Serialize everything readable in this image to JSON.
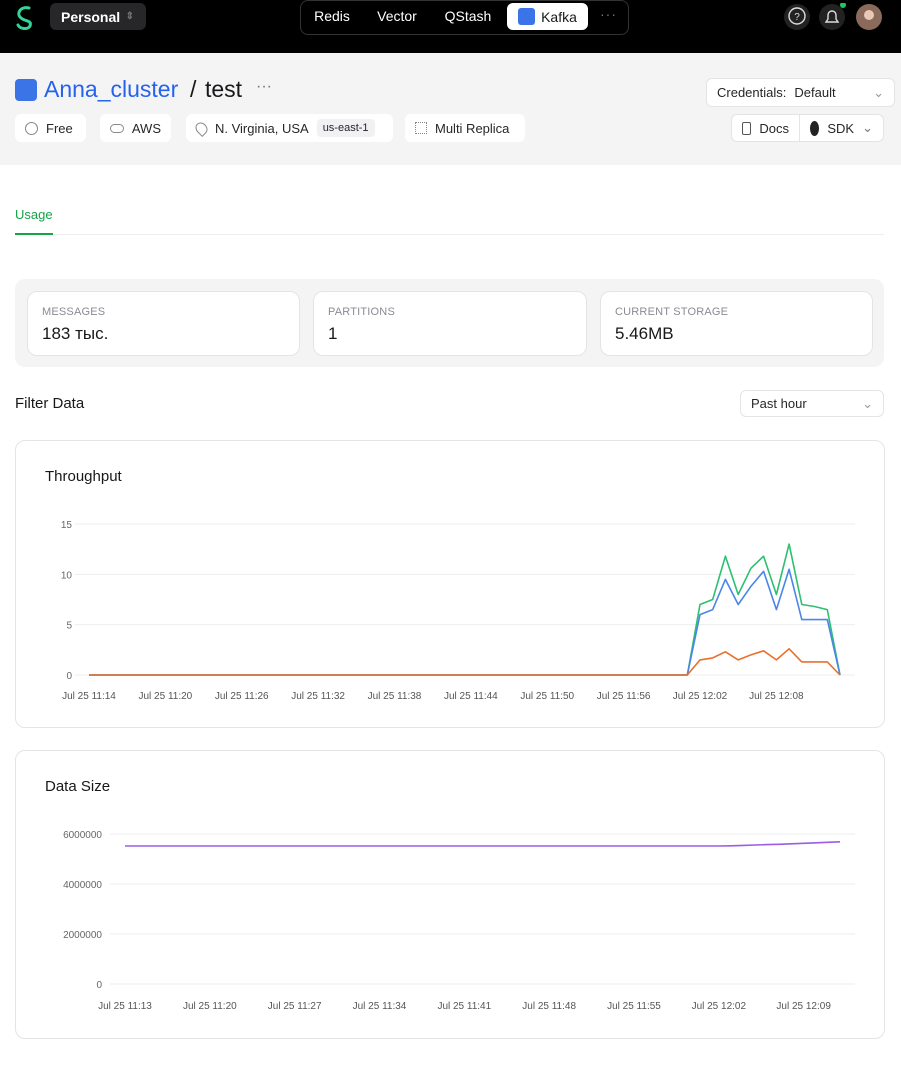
{
  "nav": {
    "workspace": "Personal",
    "products": [
      "Redis",
      "Vector",
      "QStash",
      "Kafka"
    ]
  },
  "header": {
    "cluster": "Anna_cluster",
    "separator": "/",
    "topic": "test",
    "badges": [
      "Free",
      "AWS",
      "N. Virginia, USA",
      "Multi Replica"
    ],
    "region": "us-east-1",
    "credentials_label": "Credentials:",
    "credentials_value": "Default",
    "buttons": [
      "Docs",
      "SDK"
    ]
  },
  "tabs": [
    "Usage"
  ],
  "stats": [
    {
      "label": "MESSAGES",
      "value": "183 тыс."
    },
    {
      "label": "PARTITIONS",
      "value": "1"
    },
    {
      "label": "CURRENT STORAGE",
      "value": "5.46MB"
    }
  ],
  "filter": {
    "title": "Filter Data",
    "period": "Past hour"
  },
  "chart_data": [
    {
      "type": "line",
      "title": "Throughput",
      "categories": [
        "Jul 25 11:14",
        null,
        null,
        null,
        null,
        null,
        "Jul 25 11:20",
        null,
        null,
        null,
        null,
        null,
        "Jul 25 11:26",
        null,
        null,
        null,
        null,
        null,
        "Jul 25 11:32",
        null,
        null,
        null,
        null,
        null,
        "Jul 25 11:38",
        null,
        null,
        null,
        null,
        null,
        "Jul 25 11:44",
        null,
        null,
        null,
        null,
        null,
        "Jul 25 11:50",
        null,
        null,
        null,
        null,
        null,
        "Jul 25 11:56",
        null,
        null,
        null,
        null,
        null,
        "Jul 25 12:02",
        null,
        null,
        null,
        null,
        null,
        "Jul 25 12:08",
        null,
        null,
        null,
        null,
        null
      ],
      "series": [
        {
          "color": "#2fbf71",
          "values": [
            0,
            0,
            0,
            0,
            0,
            0,
            0,
            0,
            0,
            0,
            0,
            0,
            0,
            0,
            0,
            0,
            0,
            0,
            0,
            0,
            0,
            0,
            0,
            0,
            0,
            0,
            0,
            0,
            0,
            0,
            0,
            0,
            0,
            0,
            0,
            0,
            0,
            0,
            0,
            0,
            0,
            0,
            0,
            0,
            0,
            0,
            0,
            0,
            7,
            7.5,
            11.8,
            8,
            10.6,
            11.8,
            8,
            13,
            7,
            6.8,
            6.5,
            0
          ]
        },
        {
          "color": "#4a86e8",
          "values": [
            0,
            0,
            0,
            0,
            0,
            0,
            0,
            0,
            0,
            0,
            0,
            0,
            0,
            0,
            0,
            0,
            0,
            0,
            0,
            0,
            0,
            0,
            0,
            0,
            0,
            0,
            0,
            0,
            0,
            0,
            0,
            0,
            0,
            0,
            0,
            0,
            0,
            0,
            0,
            0,
            0,
            0,
            0,
            0,
            0,
            0,
            0,
            0,
            6,
            6.5,
            9.5,
            7,
            8.8,
            10.3,
            6.5,
            10.5,
            5.5,
            5.5,
            5.5,
            0
          ]
        },
        {
          "color": "#e8712b",
          "values": [
            0,
            0,
            0,
            0,
            0,
            0,
            0,
            0,
            0,
            0,
            0,
            0,
            0,
            0,
            0,
            0,
            0,
            0,
            0,
            0,
            0,
            0,
            0,
            0,
            0,
            0,
            0,
            0,
            0,
            0,
            0,
            0,
            0,
            0,
            0,
            0,
            0,
            0,
            0,
            0,
            0,
            0,
            0,
            0,
            0,
            0,
            0,
            0,
            1.5,
            1.7,
            2.3,
            1.5,
            2,
            2.4,
            1.5,
            2.6,
            1.3,
            1.3,
            1.3,
            0
          ]
        }
      ],
      "ylim": [
        0,
        15
      ],
      "yticks": [
        0,
        5,
        10,
        15
      ],
      "grid": true
    },
    {
      "type": "line",
      "title": "Data Size",
      "categories": [
        "Jul 25 11:13",
        null,
        null,
        null,
        null,
        null,
        null,
        "Jul 25 11:20",
        null,
        null,
        null,
        null,
        null,
        null,
        "Jul 25 11:27",
        null,
        null,
        null,
        null,
        null,
        null,
        "Jul 25 11:34",
        null,
        null,
        null,
        null,
        null,
        null,
        "Jul 25 11:41",
        null,
        null,
        null,
        null,
        null,
        null,
        "Jul 25 11:48",
        null,
        null,
        null,
        null,
        null,
        null,
        "Jul 25 11:55",
        null,
        null,
        null,
        null,
        null,
        null,
        "Jul 25 12:02",
        null,
        null,
        null,
        null,
        null,
        null,
        "Jul 25 12:09",
        null,
        null,
        null
      ],
      "series": [
        {
          "color": "#9b5de5",
          "values": [
            5520000,
            5520000,
            5520000,
            5520000,
            5520000,
            5520000,
            5520000,
            5520000,
            5520000,
            5520000,
            5520000,
            5520000,
            5520000,
            5520000,
            5520000,
            5520000,
            5520000,
            5520000,
            5520000,
            5520000,
            5520000,
            5520000,
            5520000,
            5520000,
            5520000,
            5520000,
            5520000,
            5520000,
            5520000,
            5520000,
            5520000,
            5520000,
            5520000,
            5520000,
            5520000,
            5520000,
            5520000,
            5520000,
            5520000,
            5520000,
            5520000,
            5520000,
            5520000,
            5520000,
            5520000,
            5520000,
            5520000,
            5520000,
            5520000,
            5520000,
            5530000,
            5545000,
            5560000,
            5575000,
            5590000,
            5610000,
            5630000,
            5650000,
            5670000,
            5690000
          ]
        }
      ],
      "ylim": [
        0,
        6000000
      ],
      "yticks": [
        0,
        2000000,
        4000000,
        6000000
      ],
      "grid": true
    }
  ]
}
